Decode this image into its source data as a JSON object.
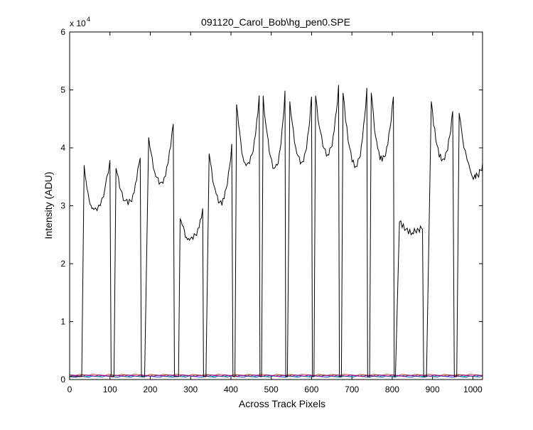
{
  "chart_data": {
    "type": "line",
    "title": "091120_Carol_Bob\\hg_pen0.SPE",
    "xlabel": "Across Track Pixels",
    "ylabel": "Intensity (ADU)",
    "y_exponent_label": "x 10",
    "y_exponent_power": "4",
    "xlim": [
      0,
      1024
    ],
    "ylim": [
      0,
      60000
    ],
    "xticks": [
      "0",
      "100",
      "200",
      "300",
      "400",
      "500",
      "600",
      "700",
      "800",
      "900",
      "1000"
    ],
    "yticks": [
      "0",
      "1",
      "2",
      "3",
      "4",
      "5",
      "6"
    ],
    "grid": false,
    "legend": "none",
    "series": [
      {
        "color": "#000000",
        "peaks": [
          {
            "x0": 30,
            "x1": 36,
            "left": 37000,
            "mid_x": 60,
            "mid": 29000,
            "right_x": 100,
            "right": 37500,
            "x2": 103,
            "x3": 110
          },
          {
            "x0": 110,
            "x1": 115,
            "left": 36500,
            "mid_x": 145,
            "mid": 30500,
            "right_x": 175,
            "right": 38800,
            "x2": 178,
            "x3": 186
          },
          {
            "x0": 186,
            "x1": 196,
            "left": 41800,
            "mid_x": 225,
            "mid": 34000,
            "right_x": 257,
            "right": 44300,
            "x2": 260,
            "x3": 270
          },
          {
            "x0": 270,
            "x1": 274,
            "left": 27700,
            "mid_x": 300,
            "mid": 24200,
            "right_x": 330,
            "right": 29000,
            "x2": 332,
            "x3": 338
          },
          {
            "x0": 338,
            "x1": 346,
            "left": 39000,
            "mid_x": 375,
            "mid": 30500,
            "right_x": 402,
            "right": 40500,
            "x2": 405,
            "x3": 410
          },
          {
            "x0": 410,
            "x1": 414,
            "left": 47500,
            "mid_x": 440,
            "mid": 37000,
            "right_x": 470,
            "right": 48500,
            "x2": 472,
            "x3": 476
          },
          {
            "x0": 476,
            "x1": 480,
            "left": 49000,
            "mid_x": 510,
            "mid": 36500,
            "right_x": 534,
            "right": 49500,
            "x2": 536,
            "x3": 540
          },
          {
            "x0": 540,
            "x1": 546,
            "left": 48000,
            "mid_x": 575,
            "mid": 37500,
            "right_x": 600,
            "right": 49000,
            "x2": 602,
            "x3": 606
          },
          {
            "x0": 606,
            "x1": 610,
            "left": 49000,
            "mid_x": 640,
            "mid": 39000,
            "right_x": 667,
            "right": 50500,
            "x2": 669,
            "x3": 674
          },
          {
            "x0": 674,
            "x1": 678,
            "left": 49500,
            "mid_x": 710,
            "mid": 37000,
            "right_x": 737,
            "right": 50000,
            "x2": 739,
            "x3": 744
          },
          {
            "x0": 744,
            "x1": 748,
            "left": 49500,
            "mid_x": 775,
            "mid": 38000,
            "right_x": 803,
            "right": 49000,
            "x2": 805,
            "x3": 808
          },
          {
            "x0": 808,
            "x1": 818,
            "left": 27200,
            "mid_x": 850,
            "mid": 25500,
            "right_x": 875,
            "right": 26500,
            "x2": 878,
            "x3": 885
          },
          {
            "x0": 885,
            "x1": 897,
            "left": 48000,
            "mid_x": 925,
            "mid": 38000,
            "right_x": 950,
            "right": 46500,
            "x2": 954,
            "x3": 960
          },
          {
            "x0": 960,
            "x1": 966,
            "left": 46000,
            "mid_x": 1005,
            "mid": 35000,
            "right_x": 1024,
            "right": 37000,
            "x2": 1024,
            "x3": 1024
          }
        ],
        "baseline": 500
      }
    ],
    "baselines": [
      {
        "color": "#1f3fbf",
        "value": 500
      },
      {
        "color": "#2e8b2e",
        "value": 700
      },
      {
        "color": "#c04040",
        "value": 800
      },
      {
        "color": "#00a0a0",
        "value": 600
      },
      {
        "color": "#a000a0",
        "value": 650
      }
    ]
  }
}
